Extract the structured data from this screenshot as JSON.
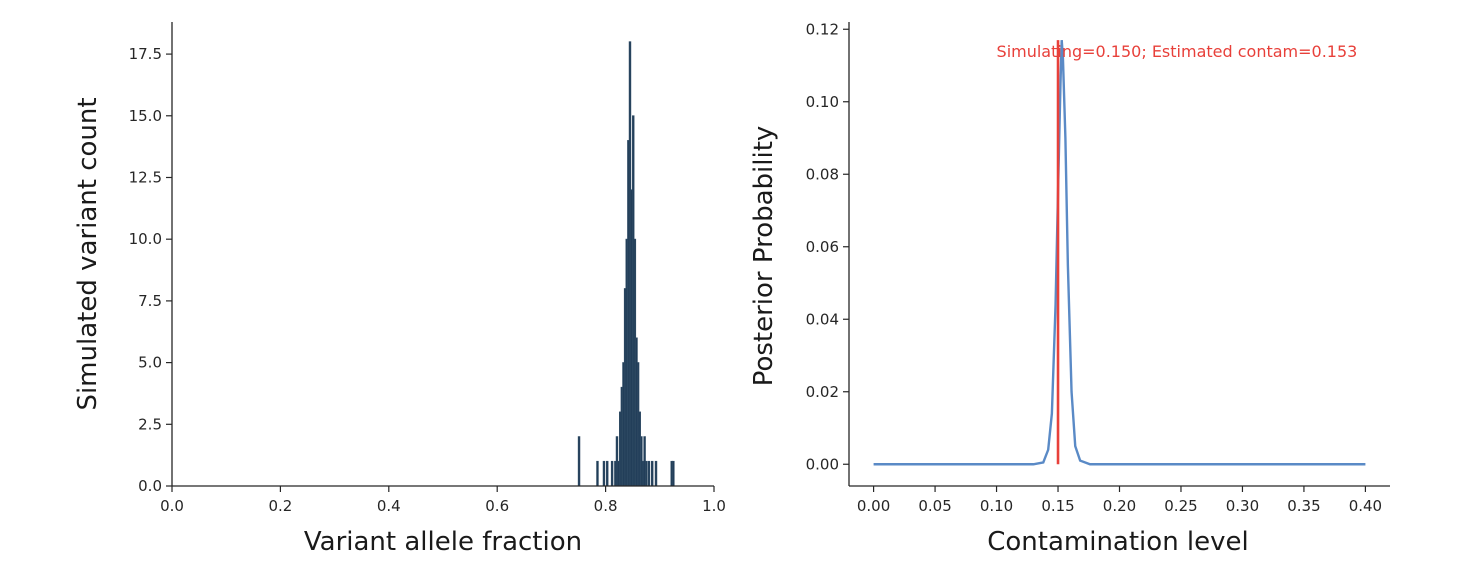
{
  "colors": {
    "hist_fill": "#1f3b57",
    "hist_edge": "#2e4a63",
    "posterior_line": "#5a8ac6",
    "marker_line": "#e8403a",
    "annotation_text": "#e8403a"
  },
  "chart_data": [
    {
      "type": "bar",
      "title": "",
      "xlabel": "Variant allele fraction",
      "ylabel": "Simulated variant count",
      "xlim": [
        0.0,
        1.0
      ],
      "ylim": [
        0.0,
        18.8
      ],
      "xticks": [
        "0.0",
        "0.2",
        "0.4",
        "0.6",
        "0.8",
        "1.0"
      ],
      "yticks": [
        "0.0",
        "2.5",
        "5.0",
        "7.5",
        "10.0",
        "12.5",
        "15.0",
        "17.5"
      ],
      "grid": false,
      "bin_width": 0.003,
      "bins": [
        {
          "x": 0.751,
          "count": 2
        },
        {
          "x": 0.785,
          "count": 1
        },
        {
          "x": 0.797,
          "count": 1
        },
        {
          "x": 0.803,
          "count": 1
        },
        {
          "x": 0.812,
          "count": 1
        },
        {
          "x": 0.818,
          "count": 1
        },
        {
          "x": 0.821,
          "count": 2
        },
        {
          "x": 0.824,
          "count": 1
        },
        {
          "x": 0.827,
          "count": 3
        },
        {
          "x": 0.83,
          "count": 4
        },
        {
          "x": 0.833,
          "count": 5
        },
        {
          "x": 0.836,
          "count": 8
        },
        {
          "x": 0.839,
          "count": 10
        },
        {
          "x": 0.842,
          "count": 14
        },
        {
          "x": 0.845,
          "count": 18
        },
        {
          "x": 0.848,
          "count": 12
        },
        {
          "x": 0.851,
          "count": 15
        },
        {
          "x": 0.854,
          "count": 10
        },
        {
          "x": 0.857,
          "count": 6
        },
        {
          "x": 0.86,
          "count": 5
        },
        {
          "x": 0.863,
          "count": 3
        },
        {
          "x": 0.866,
          "count": 2
        },
        {
          "x": 0.869,
          "count": 1
        },
        {
          "x": 0.872,
          "count": 2
        },
        {
          "x": 0.875,
          "count": 1
        },
        {
          "x": 0.88,
          "count": 1
        },
        {
          "x": 0.886,
          "count": 1
        },
        {
          "x": 0.893,
          "count": 1
        },
        {
          "x": 0.922,
          "count": 1
        },
        {
          "x": 0.925,
          "count": 1
        }
      ]
    },
    {
      "type": "line",
      "title": "",
      "xlabel": "Contamination level",
      "ylabel": "Posterior Probability",
      "xlim": [
        -0.02,
        0.42
      ],
      "ylim": [
        -0.006,
        0.122
      ],
      "xticks": [
        "0.00",
        "0.05",
        "0.10",
        "0.15",
        "0.20",
        "0.25",
        "0.30",
        "0.35",
        "0.40"
      ],
      "yticks": [
        "0.00",
        "0.02",
        "0.04",
        "0.06",
        "0.08",
        "0.10",
        "0.12"
      ],
      "grid": false,
      "series": [
        {
          "x": [
            0.0,
            0.05,
            0.1,
            0.13,
            0.138,
            0.142,
            0.145,
            0.148,
            0.15,
            0.152,
            0.153,
            0.154,
            0.156,
            0.158,
            0.161,
            0.164,
            0.168,
            0.176,
            0.2,
            0.3,
            0.4
          ],
          "y": [
            0.0,
            0.0,
            0.0,
            0.0,
            0.0005,
            0.004,
            0.014,
            0.044,
            0.075,
            0.105,
            0.117,
            0.112,
            0.09,
            0.055,
            0.02,
            0.005,
            0.001,
            0.0,
            0.0,
            0.0,
            0.0
          ]
        }
      ],
      "vline": {
        "x": 0.15,
        "y_range": [
          0.0,
          0.117
        ]
      },
      "annotation": {
        "text": "Simulating=0.150; Estimated contam=0.153",
        "x": 0.1,
        "y": 0.116
      }
    }
  ]
}
